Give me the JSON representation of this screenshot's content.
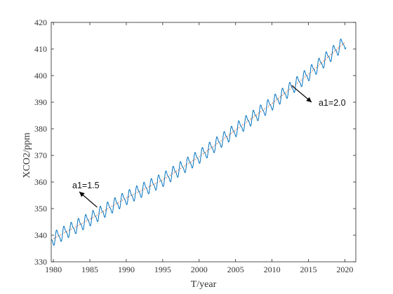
{
  "chart_data": {
    "type": "line",
    "title": "",
    "xlabel": "T/year",
    "ylabel": "XCO2/ppm",
    "xlim": [
      1979.7,
      2021.5
    ],
    "ylim": [
      330,
      420
    ],
    "x_ticks": [
      1980,
      1985,
      1990,
      1995,
      2000,
      2005,
      2010,
      2015,
      2020
    ],
    "y_ticks": [
      330,
      340,
      350,
      360,
      370,
      380,
      390,
      400,
      410,
      420
    ],
    "grid": false,
    "legend": "none",
    "series": [
      {
        "style": "solid",
        "color": "#0072BD",
        "description_points": {
          "x": [
            1980,
            1985,
            1990,
            1995,
            2000,
            2005,
            2010,
            2015,
            2020
          ],
          "y": [
            338.7,
            346.0,
            354.0,
            360.8,
            369.5,
            379.5,
            389.5,
            400.5,
            412.5
          ]
        },
        "seasonal_amplitude": 3.0
      },
      {
        "style": "dotted",
        "color": "#D95319",
        "description_points": {
          "x": [
            1980,
            1985,
            1990,
            1995,
            2000,
            2005,
            2010,
            2015,
            2020
          ],
          "y": [
            338.7,
            346.0,
            354.0,
            360.8,
            369.5,
            379.5,
            389.5,
            400.5,
            412.5
          ]
        }
      }
    ],
    "annotations": [
      {
        "text": "a1=1.5",
        "arrow_to": [
          1986.0,
          350.5
        ]
      },
      {
        "text": "a1=2.0",
        "arrow_to": [
          2012.7,
          396.3
        ]
      }
    ]
  }
}
